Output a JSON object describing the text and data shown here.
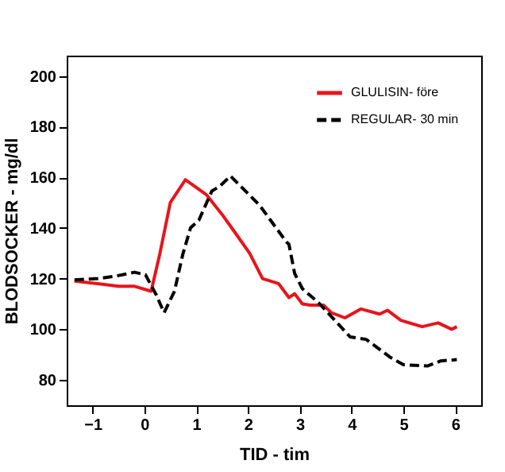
{
  "chart_data": {
    "type": "line",
    "xlabel": "TID - tim",
    "ylabel": "BLODSOCKER - mg/dl",
    "xlim": [
      -1.5,
      6.5
    ],
    "ylim": [
      70,
      208
    ],
    "xticks": [
      -1,
      0,
      1,
      2,
      3,
      4,
      5,
      6
    ],
    "yticks": [
      80,
      100,
      120,
      140,
      160,
      180,
      200
    ],
    "grid": false,
    "legend": "top right",
    "marker": "none",
    "series": [
      {
        "name": "GLULISIN- före",
        "color": "#e8141c",
        "line_style": "solid",
        "x": [
          -1.35,
          -0.9,
          -0.5,
          -0.2,
          0.13,
          0.3,
          0.5,
          0.79,
          1.0,
          1.2,
          1.51,
          1.72,
          2.03,
          2.28,
          2.59,
          2.79,
          2.9,
          3.05,
          3.2,
          3.46,
          3.61,
          3.87,
          4.18,
          4.54,
          4.69,
          4.95,
          5.36,
          5.67,
          5.93,
          6.03
        ],
        "values": [
          119,
          118,
          117,
          117,
          115,
          130,
          150,
          159,
          156,
          153,
          145,
          139,
          130,
          120,
          118,
          112.5,
          114,
          110,
          109.5,
          109.5,
          106.5,
          104.5,
          108,
          106,
          107.5,
          103.5,
          101,
          102.5,
          100,
          101
        ]
      },
      {
        "name": "REGULAR- 30 min",
        "color": "#000000",
        "line_style": "dashed",
        "x": [
          -1.35,
          -0.9,
          -0.55,
          -0.19,
          0.02,
          0.23,
          0.38,
          0.58,
          0.74,
          0.89,
          1.05,
          1.3,
          1.46,
          1.66,
          2.22,
          2.74,
          2.79,
          2.9,
          3.05,
          3.36,
          3.97,
          4.28,
          4.74,
          5.0,
          5.46,
          5.72,
          6.03
        ],
        "values": [
          119.5,
          120,
          121,
          122.5,
          121.5,
          113.5,
          106.5,
          115,
          129.5,
          140,
          143,
          154.5,
          156.5,
          160.5,
          149,
          134.5,
          133.5,
          122,
          116,
          110.5,
          97,
          96,
          89,
          86,
          85.5,
          87.5,
          88
        ]
      }
    ]
  }
}
